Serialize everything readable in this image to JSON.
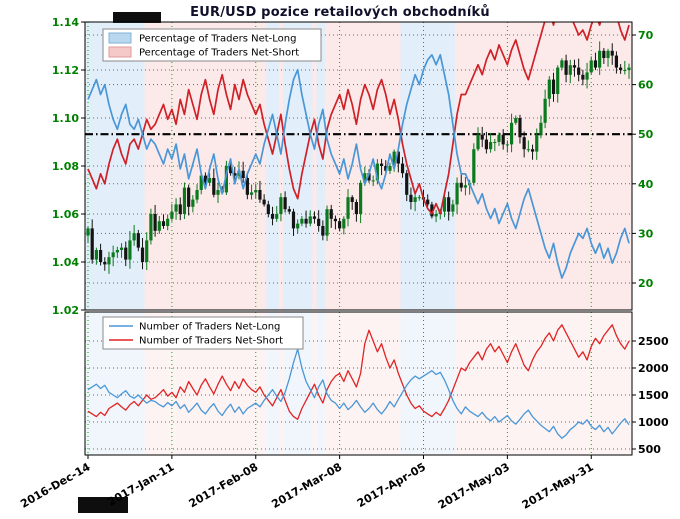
{
  "header": {
    "title": "EUR/USD pozice retailových obchodníků"
  },
  "chart_data": [
    {
      "type": "candlestick",
      "panel": "price-and-sentiment",
      "title": "EUR/USD pozice retailových obchodníků",
      "x_tick_indices": [
        0,
        20,
        40,
        60,
        80,
        100,
        120
      ],
      "x_tick_labels": [
        "2016-Dec-14",
        "2017-Jan-11",
        "2017-Feb-08",
        "2017-Mar-08",
        "2017-Apr-05",
        "2017-May-03",
        "2017-May-31"
      ],
      "price_axis": {
        "side": "left",
        "range": [
          1.02,
          1.14
        ],
        "ticks": [
          1.02,
          1.04,
          1.06,
          1.08,
          1.1,
          1.12,
          1.14
        ]
      },
      "percent_axis": {
        "side": "right",
        "ticks": [
          20,
          30,
          40,
          50,
          60,
          70
        ],
        "reference_line": 50
      },
      "legend": [
        {
          "label": "Percentage of Traders Net-Long",
          "swatch": "patch",
          "color": "#b9d7ee",
          "border": "#7fb2d8"
        },
        {
          "label": "Percentage of Traders Net-Short",
          "swatch": "patch",
          "color": "#f6c9c9",
          "border": "#e09a9a"
        }
      ],
      "colors": {
        "grid": "#00b300",
        "candle_up": "#0b7a1e",
        "candle_down": "#141414",
        "shade_long": "rgba(110,170,225,0.20)",
        "shade_short": "rgba(235,100,100,0.14)",
        "shade_long_lower": "rgba(110,170,225,0.10)",
        "shade_short_lower": "rgba(235,100,100,0.08)",
        "reference_line": "#000000",
        "axis_label_green": "#008000"
      },
      "series": [
        {
          "name": "EUR/USD close",
          "type": "candlestick",
          "values": [
            1.054,
            1.041,
            1.045,
            1.04,
            1.039,
            1.042,
            1.044,
            1.045,
            1.046,
            1.041,
            1.049,
            1.052,
            1.046,
            1.04,
            1.049,
            1.06,
            1.053,
            1.057,
            1.055,
            1.058,
            1.061,
            1.064,
            1.06,
            1.071,
            1.063,
            1.066,
            1.07,
            1.076,
            1.073,
            1.075,
            1.068,
            1.07,
            1.069,
            1.08,
            1.077,
            1.076,
            1.078,
            1.075,
            1.068,
            1.069,
            1.07,
            1.066,
            1.064,
            1.06,
            1.058,
            1.06,
            1.067,
            1.062,
            1.061,
            1.054,
            1.056,
            1.058,
            1.056,
            1.059,
            1.058,
            1.055,
            1.051,
            1.062,
            1.058,
            1.057,
            1.054,
            1.058,
            1.067,
            1.065,
            1.06,
            1.073,
            1.077,
            1.074,
            1.074,
            1.081,
            1.08,
            1.078,
            1.08,
            1.086,
            1.081,
            1.077,
            1.068,
            1.065,
            1.067,
            1.067,
            1.066,
            1.064,
            1.059,
            1.06,
            1.061,
            1.067,
            1.061,
            1.064,
            1.073,
            1.071,
            1.072,
            1.073,
            1.087,
            1.093,
            1.091,
            1.087,
            1.09,
            1.09,
            1.093,
            1.089,
            1.089,
            1.098,
            1.1,
            1.092,
            1.087,
            1.087,
            1.086,
            1.093,
            1.098,
            1.108,
            1.116,
            1.11,
            1.121,
            1.124,
            1.118,
            1.122,
            1.121,
            1.118,
            1.116,
            1.119,
            1.124,
            1.121,
            1.128,
            1.125,
            1.128,
            1.126,
            1.121,
            1.12,
            1.12,
            1.121
          ]
        },
        {
          "name": "Percentage of Traders Net-Long",
          "type": "line",
          "color": "#4a97d8",
          "values": [
            57,
            59,
            61,
            58,
            60,
            56,
            53,
            51,
            54,
            56,
            52,
            51,
            53,
            50,
            47,
            49,
            48,
            46,
            44,
            47,
            45,
            48,
            43,
            46,
            41,
            44,
            47,
            42,
            39,
            43,
            46,
            41,
            38,
            42,
            45,
            40,
            43,
            39,
            42,
            44,
            46,
            44,
            48,
            51,
            54,
            50,
            46,
            52,
            57,
            61,
            63,
            58,
            54,
            50,
            47,
            52,
            55,
            49,
            46,
            44,
            42,
            45,
            41,
            44,
            48,
            43,
            40,
            42,
            45,
            41,
            39,
            42,
            46,
            43,
            47,
            52,
            56,
            59,
            62,
            60,
            63,
            65,
            66,
            64,
            66,
            62,
            58,
            52,
            46,
            42,
            42,
            40,
            38,
            36,
            38,
            35,
            33,
            35,
            32,
            34,
            36,
            33,
            31,
            34,
            37,
            39,
            36,
            33,
            30,
            27,
            25,
            28,
            24,
            21,
            23,
            26,
            28,
            30,
            29,
            31,
            28,
            26,
            28,
            25,
            27,
            24,
            26,
            29,
            31,
            28
          ]
        },
        {
          "name": "Percentage of Traders Net-Short",
          "type": "line",
          "color": "#cf2128",
          "derived": "100 minus net-long",
          "values": [
            43,
            41,
            39,
            42,
            40,
            44,
            47,
            49,
            46,
            44,
            48,
            49,
            47,
            50,
            53,
            51,
            52,
            54,
            56,
            53,
            55,
            52,
            57,
            54,
            59,
            56,
            53,
            58,
            61,
            57,
            54,
            59,
            62,
            58,
            55,
            60,
            57,
            61,
            58,
            56,
            54,
            56,
            52,
            49,
            46,
            50,
            54,
            48,
            43,
            39,
            37,
            42,
            46,
            50,
            53,
            48,
            45,
            51,
            54,
            56,
            58,
            55,
            59,
            56,
            52,
            57,
            60,
            58,
            55,
            59,
            61,
            58,
            54,
            57,
            53,
            48,
            44,
            41,
            38,
            40,
            37,
            35,
            34,
            36,
            34,
            38,
            42,
            48,
            54,
            58,
            58,
            60,
            62,
            64,
            62,
            65,
            67,
            65,
            68,
            66,
            64,
            67,
            69,
            66,
            63,
            61,
            64,
            67,
            70,
            73,
            75,
            72,
            76,
            79,
            77,
            74,
            72,
            70,
            71,
            69,
            72,
            74,
            72,
            75,
            73,
            76,
            74,
            71,
            69,
            72
          ]
        }
      ]
    },
    {
      "type": "line",
      "panel": "number-of-traders",
      "count_axis": {
        "side": "right",
        "ticks": [
          500,
          1000,
          1500,
          2000,
          2500
        ]
      },
      "legend": [
        {
          "label": "Number of Traders Net-Long",
          "swatch": "line",
          "color": "#4a97d8"
        },
        {
          "label": "Number of Traders Net-Short",
          "swatch": "line",
          "color": "#e02424"
        }
      ],
      "series": [
        {
          "name": "Number of Traders Net-Long",
          "type": "line",
          "color": "#4a97d8",
          "values": [
            1600,
            1650,
            1700,
            1620,
            1680,
            1550,
            1500,
            1450,
            1520,
            1580,
            1480,
            1440,
            1500,
            1420,
            1350,
            1400,
            1380,
            1320,
            1280,
            1360,
            1300,
            1380,
            1250,
            1320,
            1180,
            1260,
            1350,
            1220,
            1150,
            1260,
            1340,
            1200,
            1120,
            1240,
            1330,
            1180,
            1280,
            1150,
            1250,
            1300,
            1350,
            1280,
            1400,
            1500,
            1600,
            1480,
            1380,
            1550,
            1800,
            2100,
            2350,
            2000,
            1750,
            1600,
            1450,
            1650,
            1780,
            1520,
            1400,
            1350,
            1250,
            1350,
            1230,
            1300,
            1400,
            1280,
            1180,
            1250,
            1350,
            1230,
            1150,
            1250,
            1380,
            1280,
            1420,
            1550,
            1680,
            1780,
            1850,
            1800,
            1850,
            1900,
            1950,
            1880,
            1920,
            1780,
            1600,
            1400,
            1250,
            1150,
            1280,
            1200,
            1150,
            1100,
            1180,
            1080,
            1020,
            1100,
            1000,
            1060,
            1120,
            1020,
            960,
            1050,
            1150,
            1220,
            1100,
            1020,
            940,
            880,
            820,
            920,
            780,
            700,
            760,
            860,
            920,
            1000,
            960,
            1040,
            920,
            860,
            940,
            820,
            900,
            780,
            880,
            980,
            1060,
            950
          ]
        },
        {
          "name": "Number of Traders Net-Short",
          "type": "line",
          "color": "#e02424",
          "values": [
            1200,
            1150,
            1100,
            1180,
            1120,
            1250,
            1300,
            1350,
            1280,
            1220,
            1320,
            1380,
            1300,
            1400,
            1500,
            1420,
            1450,
            1520,
            1600,
            1480,
            1550,
            1450,
            1650,
            1550,
            1750,
            1620,
            1500,
            1680,
            1800,
            1650,
            1520,
            1700,
            1850,
            1700,
            1580,
            1750,
            1620,
            1800,
            1680,
            1600,
            1550,
            1650,
            1500,
            1400,
            1300,
            1450,
            1600,
            1400,
            1200,
            1100,
            1050,
            1250,
            1400,
            1550,
            1700,
            1500,
            1350,
            1600,
            1750,
            1850,
            1900,
            1750,
            1950,
            1800,
            1650,
            1900,
            2450,
            2700,
            2500,
            2300,
            2450,
            2200,
            2000,
            2150,
            1900,
            1700,
            1500,
            1350,
            1250,
            1300,
            1200,
            1150,
            1100,
            1180,
            1120,
            1250,
            1400,
            1600,
            1800,
            2000,
            1950,
            2100,
            2200,
            2300,
            2150,
            2350,
            2450,
            2300,
            2400,
            2250,
            2100,
            2300,
            2450,
            2250,
            2050,
            1950,
            2150,
            2300,
            2400,
            2550,
            2650,
            2500,
            2700,
            2800,
            2650,
            2500,
            2350,
            2200,
            2300,
            2150,
            2400,
            2550,
            2450,
            2600,
            2700,
            2800,
            2600,
            2450,
            2350,
            2500
          ]
        }
      ]
    }
  ]
}
